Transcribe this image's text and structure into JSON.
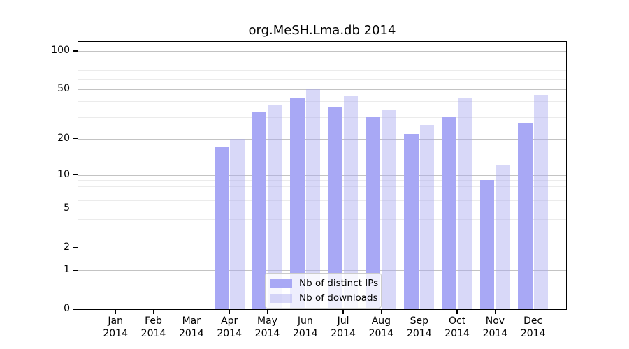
{
  "figure": {
    "title": "org.MeSH.Lma.db 2014"
  },
  "chart_data": {
    "type": "bar",
    "title": "org.MeSH.Lma.db 2014",
    "categories": [
      "Jan 2014",
      "Feb 2014",
      "Mar 2014",
      "Apr 2014",
      "May 2014",
      "Jun 2014",
      "Jul 2014",
      "Aug 2014",
      "Sep 2014",
      "Oct 2014",
      "Nov 2014",
      "Dec 2014"
    ],
    "x_tick_month": [
      "Jan",
      "Feb",
      "Mar",
      "Apr",
      "May",
      "Jun",
      "Jul",
      "Aug",
      "Sep",
      "Oct",
      "Nov",
      "Dec"
    ],
    "x_tick_year": "2014",
    "series": [
      {
        "name": "Nb of distinct IPs",
        "color": "#a8a8f5",
        "alpha": 1.0,
        "values": [
          0,
          0,
          0,
          17,
          33,
          43,
          36,
          30,
          22,
          30,
          9,
          27
        ]
      },
      {
        "name": "Nb of downloads",
        "color": "#a8a8f0",
        "alpha": 0.45,
        "values": [
          0,
          0,
          0,
          20,
          37,
          50,
          44,
          34,
          26,
          43,
          12,
          45
        ]
      }
    ],
    "xlabel": "",
    "ylabel": "",
    "yscale": "log1p",
    "ylim": [
      0,
      117.6
    ],
    "y_major_ticks": [
      0,
      1,
      2,
      5,
      10,
      20,
      50,
      100
    ],
    "y_minor_gridlines": [
      3,
      4,
      6,
      7,
      8,
      9,
      30,
      40,
      60,
      70,
      80,
      90
    ],
    "grid": true,
    "legend_position": "lower center",
    "colors": {
      "bar_distinct_ips": "#a8a8f5",
      "bar_downloads": "#d8d8f8",
      "major_grid": "#c3c3c3",
      "minor_grid": "#ebebeb",
      "axis": "#000000",
      "legend_border": "#cccccc"
    }
  }
}
